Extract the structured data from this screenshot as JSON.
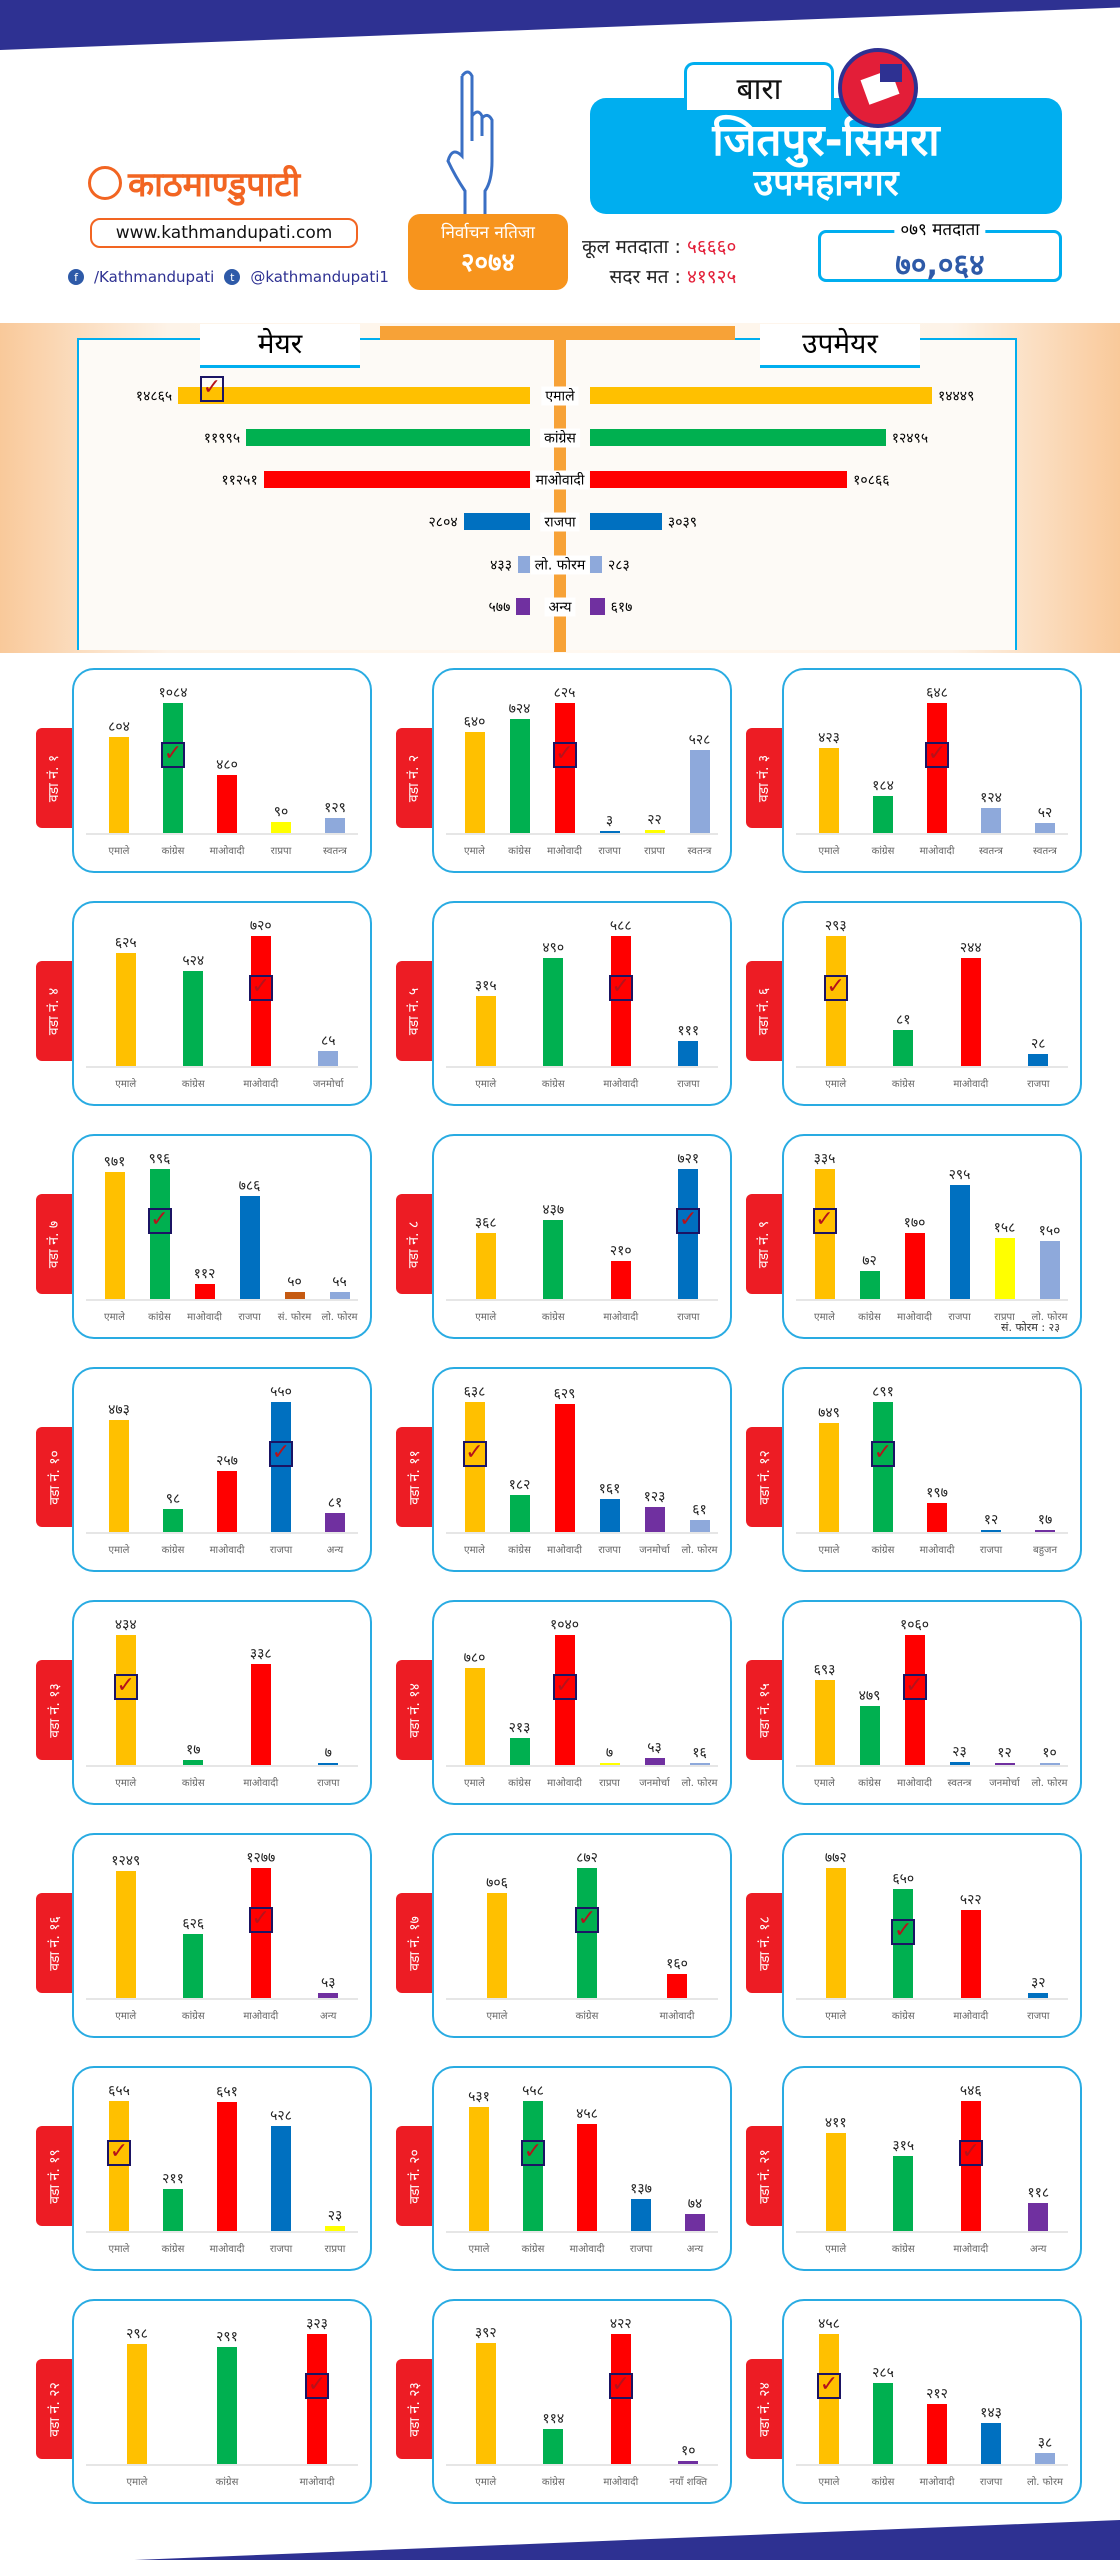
{
  "header": {
    "logo": "काठमाण्डुपाटी",
    "url": "www.kathmandupati.com",
    "facebook": "/Kathmandupati",
    "twitter": "@kathmandupati1",
    "result_title": "निर्वाचन नतिजा",
    "year": "२०७४",
    "district": "बारा",
    "municipality_line1": "जितपुर-सिमरा",
    "municipality_line2": "उपमहानगर",
    "total_voters_label": "कूल मतदाता :",
    "total_voters": "५६६६०",
    "valid_votes_label": "सदर मत :",
    "valid_votes": "४१९२५",
    "voters_079_label": "०७९ मतदाता",
    "voters_079": "७०,०६४"
  },
  "colors": {
    "एमाले": "#FFC000",
    "कांग्रेस": "#00B050",
    "माओवादी": "#FF0000",
    "राजपा": "#0070C0",
    "लो. फोरम": "#8EA9DB",
    "अन्य": "#7030A0",
    "स्वतन्त्र": "#8EA9DB",
    "जनमोर्चा": "#8EA9DB",
    "राप्रपा": "#FFFF00",
    "सं. फोरम": "#C55A11",
    "बहुजन": "#7030A0",
    "नयाँ शक्ति": "#7030A0"
  },
  "chart_data": [
    {
      "type": "bar",
      "orientation": "horizontal-butterfly",
      "title_left": "मेयर",
      "title_right": "उपमेयर",
      "categories": [
        "एमाले",
        "कांग्रेस",
        "माओवादी",
        "राजपा",
        "लो. फोरम",
        "अन्य"
      ],
      "series": [
        {
          "name": "मेयर",
          "values": [
            14865,
            11995,
            11251,
            2804,
            433,
            577
          ],
          "winner": 0
        },
        {
          "name": "उपमेयर",
          "values": [
            14449,
            12495,
            10866,
            3039,
            283,
            617
          ]
        }
      ]
    },
    {
      "type": "bar",
      "wards": [
        {
          "label": "वडा नं. १",
          "parties": [
            "एमाले",
            "कांग्रेस",
            "माओवादी",
            "राप्रपा",
            "स्वतन्त्र"
          ],
          "colors": [
            "#FFC000",
            "#00B050",
            "#FF0000",
            "#FFFF00",
            "#8EA9DB"
          ],
          "values": [
            804,
            1084,
            480,
            90,
            129
          ],
          "winner": 1
        },
        {
          "label": "वडा नं. २",
          "parties": [
            "एमाले",
            "कांग्रेस",
            "माओवादी",
            "राजपा",
            "राप्रपा",
            "स्वतन्त्र"
          ],
          "colors": [
            "#FFC000",
            "#00B050",
            "#FF0000",
            "#0070C0",
            "#FFFF00",
            "#8EA9DB"
          ],
          "values": [
            640,
            724,
            825,
            3,
            22,
            528
          ],
          "winner": 2
        },
        {
          "label": "वडा नं. ३",
          "parties": [
            "एमाले",
            "कांग्रेस",
            "माओवादी",
            "स्वतन्त्र",
            "स्वतन्त्र"
          ],
          "colors": [
            "#FFC000",
            "#00B050",
            "#FF0000",
            "#8EA9DB",
            "#8EA9DB"
          ],
          "values": [
            423,
            184,
            648,
            124,
            52
          ],
          "winner": 2
        },
        {
          "label": "वडा नं. ४",
          "parties": [
            "एमाले",
            "कांग्रेस",
            "माओवादी",
            "जनमोर्चा"
          ],
          "colors": [
            "#FFC000",
            "#00B050",
            "#FF0000",
            "#8EA9DB"
          ],
          "values": [
            625,
            524,
            720,
            85
          ],
          "winner": 2
        },
        {
          "label": "वडा नं. ५",
          "parties": [
            "एमाले",
            "कांग्रेस",
            "माओवादी",
            "राजपा"
          ],
          "colors": [
            "#FFC000",
            "#00B050",
            "#FF0000",
            "#0070C0"
          ],
          "values": [
            315,
            490,
            588,
            111
          ],
          "winner": 2
        },
        {
          "label": "वडा नं. ६",
          "parties": [
            "एमाले",
            "कांग्रेस",
            "माओवादी",
            "राजपा"
          ],
          "colors": [
            "#FFC000",
            "#00B050",
            "#FF0000",
            "#0070C0"
          ],
          "values": [
            293,
            81,
            244,
            28
          ],
          "winner": 0
        },
        {
          "label": "वडा नं. ७",
          "parties": [
            "एमाले",
            "कांग्रेस",
            "माओवादी",
            "राजपा",
            "सं. फोरम",
            "लो. फोरम"
          ],
          "colors": [
            "#FFC000",
            "#00B050",
            "#FF0000",
            "#0070C0",
            "#C55A11",
            "#8EA9DB"
          ],
          "values": [
            971,
            996,
            112,
            786,
            50,
            55
          ],
          "winner": 1
        },
        {
          "label": "वडा नं. ८",
          "parties": [
            "एमाले",
            "कांग्रेस",
            "माओवादी",
            "राजपा"
          ],
          "colors": [
            "#FFC000",
            "#00B050",
            "#FF0000",
            "#0070C0"
          ],
          "values": [
            368,
            437,
            210,
            721
          ],
          "winner": 3
        },
        {
          "label": "वडा नं. ९",
          "parties": [
            "एमाले",
            "कांग्रेस",
            "माओवादी",
            "राजपा",
            "राप्रपा",
            "लो. फोरम"
          ],
          "colors": [
            "#FFC000",
            "#00B050",
            "#FF0000",
            "#0070C0",
            "#FFFF00",
            "#8EA9DB"
          ],
          "values": [
            335,
            72,
            170,
            295,
            158,
            150
          ],
          "winner": 0,
          "note": "सं. फोरम : २३"
        },
        {
          "label": "वडा नं. १०",
          "parties": [
            "एमाले",
            "कांग्रेस",
            "माओवादी",
            "राजपा",
            "अन्य"
          ],
          "colors": [
            "#FFC000",
            "#00B050",
            "#FF0000",
            "#0070C0",
            "#7030A0"
          ],
          "values": [
            473,
            98,
            257,
            550,
            81
          ],
          "winner": 3
        },
        {
          "label": "वडा नं. ११",
          "parties": [
            "एमाले",
            "कांग्रेस",
            "माओवादी",
            "राजपा",
            "जनमोर्चा",
            "लो. फोरम"
          ],
          "colors": [
            "#FFC000",
            "#00B050",
            "#FF0000",
            "#0070C0",
            "#7030A0",
            "#8EA9DB"
          ],
          "values": [
            638,
            182,
            629,
            161,
            123,
            61
          ],
          "winner": 0
        },
        {
          "label": "वडा नं. १२",
          "parties": [
            "एमाले",
            "कांग्रेस",
            "माओवादी",
            "राजपा",
            "बहुजन"
          ],
          "colors": [
            "#FFC000",
            "#00B050",
            "#FF0000",
            "#0070C0",
            "#7030A0"
          ],
          "values": [
            749,
            891,
            197,
            12,
            17
          ],
          "winner": 1
        },
        {
          "label": "वडा नं. १३",
          "parties": [
            "एमाले",
            "कांग्रेस",
            "माओवादी",
            "राजपा"
          ],
          "colors": [
            "#FFC000",
            "#00B050",
            "#FF0000",
            "#0070C0"
          ],
          "values": [
            434,
            17,
            338,
            7
          ],
          "winner": 0
        },
        {
          "label": "वडा नं. १४",
          "parties": [
            "एमाले",
            "कांग्रेस",
            "माओवादी",
            "राप्रपा",
            "जनमोर्चा",
            "लो. फोरम"
          ],
          "colors": [
            "#FFC000",
            "#00B050",
            "#FF0000",
            "#FFFF00",
            "#7030A0",
            "#8EA9DB"
          ],
          "values": [
            780,
            213,
            1040,
            7,
            53,
            16
          ],
          "winner": 2
        },
        {
          "label": "वडा नं. १५",
          "parties": [
            "एमाले",
            "कांग्रेस",
            "माओवादी",
            "स्वतन्त्र",
            "जनमोर्चा",
            "लो. फोरम"
          ],
          "colors": [
            "#FFC000",
            "#00B050",
            "#FF0000",
            "#0070C0",
            "#7030A0",
            "#8EA9DB"
          ],
          "values": [
            693,
            479,
            1060,
            23,
            12,
            10
          ],
          "winner": 2
        },
        {
          "label": "वडा नं. १६",
          "parties": [
            "एमाले",
            "कांग्रेस",
            "माओवादी",
            "अन्य"
          ],
          "colors": [
            "#FFC000",
            "#00B050",
            "#FF0000",
            "#7030A0"
          ],
          "values": [
            1249,
            626,
            1277,
            53
          ],
          "winner": 2
        },
        {
          "label": "वडा नं. १७",
          "parties": [
            "एमाले",
            "कांग्रेस",
            "माओवादी"
          ],
          "colors": [
            "#FFC000",
            "#00B050",
            "#FF0000"
          ],
          "values": [
            706,
            872,
            160
          ],
          "winner": 1
        },
        {
          "label": "वडा नं. १८",
          "parties": [
            "एमाले",
            "कांग्रेस",
            "माओवादी",
            "राजपा"
          ],
          "colors": [
            "#FFC000",
            "#00B050",
            "#FF0000",
            "#0070C0"
          ],
          "values": [
            772,
            650,
            522,
            32
          ],
          "winner": 1
        },
        {
          "label": "वडा नं. १९",
          "parties": [
            "एमाले",
            "कांग्रेस",
            "माओवादी",
            "राजपा",
            "राप्रपा"
          ],
          "colors": [
            "#FFC000",
            "#00B050",
            "#FF0000",
            "#0070C0",
            "#FFFF00"
          ],
          "values": [
            655,
            211,
            651,
            528,
            23
          ],
          "winner": 0
        },
        {
          "label": "वडा नं. २०",
          "parties": [
            "एमाले",
            "कांग्रेस",
            "माओवादी",
            "राजपा",
            "अन्य"
          ],
          "colors": [
            "#FFC000",
            "#00B050",
            "#FF0000",
            "#0070C0",
            "#7030A0"
          ],
          "values": [
            531,
            558,
            458,
            137,
            74
          ],
          "winner": 1
        },
        {
          "label": "वडा नं. २१",
          "parties": [
            "एमाले",
            "कांग्रेस",
            "माओवादी",
            "अन्य"
          ],
          "colors": [
            "#FFC000",
            "#00B050",
            "#FF0000",
            "#7030A0"
          ],
          "values": [
            411,
            315,
            546,
            118
          ],
          "winner": 2
        },
        {
          "label": "वडा नं. २२",
          "parties": [
            "एमाले",
            "कांग्रेस",
            "माओवादी"
          ],
          "colors": [
            "#FFC000",
            "#00B050",
            "#FF0000"
          ],
          "values": [
            298,
            291,
            323
          ],
          "winner": 2
        },
        {
          "label": "वडा नं. २३",
          "parties": [
            "एमाले",
            "कांग्रेस",
            "माओवादी",
            "नयाँ शक्ति"
          ],
          "colors": [
            "#FFC000",
            "#00B050",
            "#FF0000",
            "#7030A0"
          ],
          "values": [
            392,
            114,
            422,
            10
          ],
          "winner": 2
        },
        {
          "label": "वडा नं. २४",
          "parties": [
            "एमाले",
            "कांग्रेस",
            "माओवादी",
            "राजपा",
            "लो. फोरम"
          ],
          "colors": [
            "#FFC000",
            "#00B050",
            "#FF0000",
            "#0070C0",
            "#8EA9DB"
          ],
          "values": [
            458,
            285,
            212,
            143,
            38
          ],
          "winner": 0
        }
      ]
    }
  ]
}
